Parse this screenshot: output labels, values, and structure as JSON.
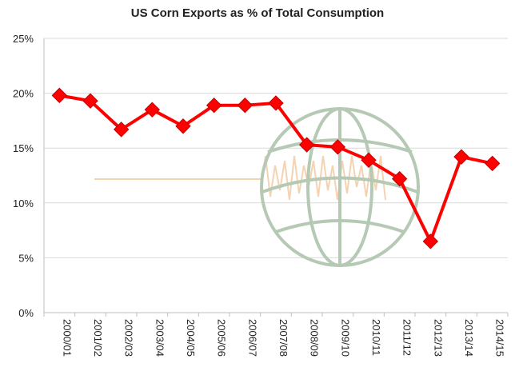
{
  "chart_data": {
    "type": "line",
    "title": "US Corn Exports as % of Total Consumption",
    "xlabel": "",
    "ylabel": "",
    "categories": [
      "2000/01",
      "2001/02",
      "2002/03",
      "2003/04",
      "2004/05",
      "2005/06",
      "2006/07",
      "2007/08",
      "2008/09",
      "2009/10",
      "2010/11",
      "2011/12",
      "2012/13",
      "2013/14",
      "2014/15"
    ],
    "series": [
      {
        "name": "Exports % of Total Consumption",
        "color": "#ff0000",
        "marker": "diamond",
        "values": [
          19.8,
          19.3,
          16.7,
          18.5,
          17.0,
          18.9,
          18.9,
          19.1,
          15.3,
          15.1,
          13.9,
          12.2,
          6.5,
          14.2,
          13.6
        ]
      }
    ],
    "ylim": [
      0,
      25
    ],
    "yticks": [
      0,
      5,
      10,
      15,
      20,
      25
    ],
    "ytick_labels": [
      "0%",
      "5%",
      "10%",
      "15%",
      "20%",
      "25%"
    ],
    "grid": true,
    "legend": "none"
  }
}
